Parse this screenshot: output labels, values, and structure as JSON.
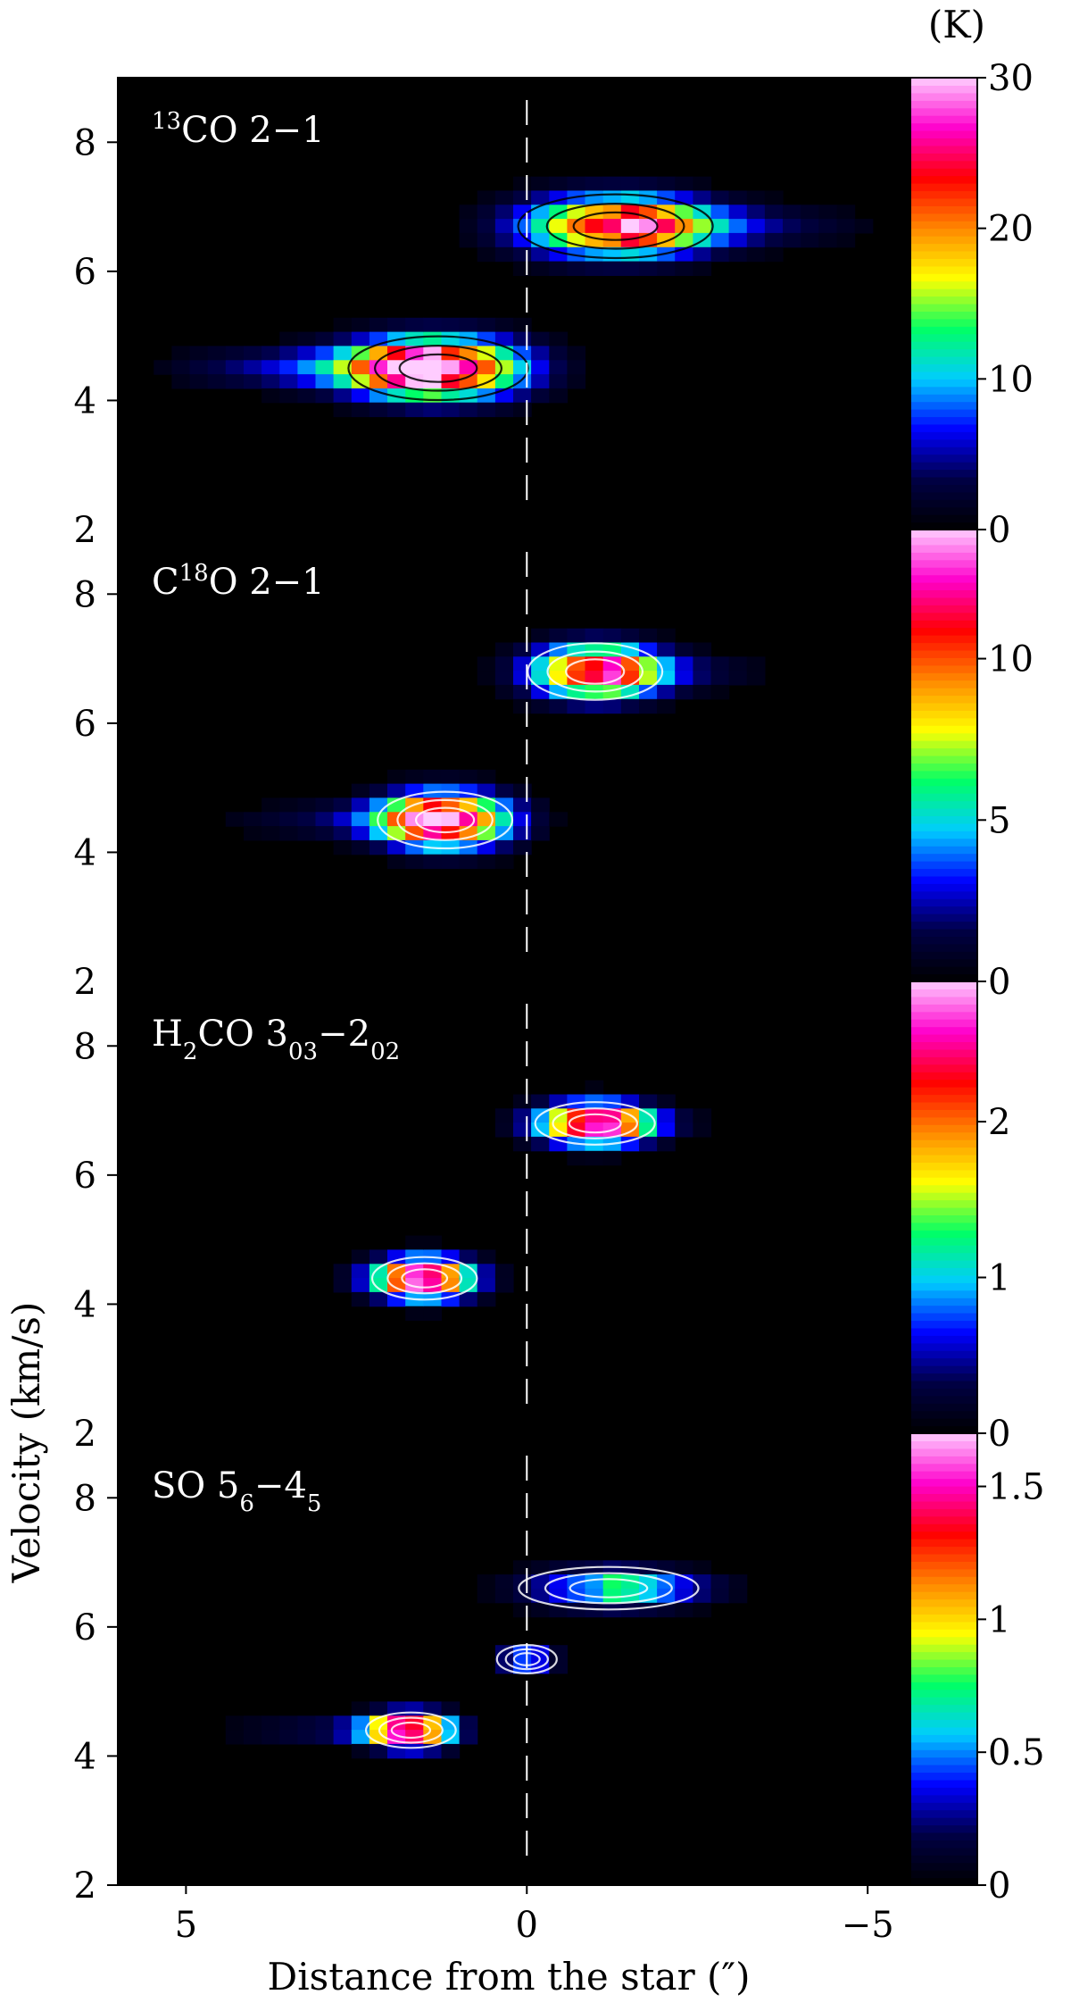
{
  "chart_data": {
    "type": "heatmap",
    "xlabel": "Distance from the star (″)",
    "ylabel": "Velocity (km/s)",
    "colorbar_unit": "(K)",
    "xlim": [
      6,
      -5.6
    ],
    "x_ticks": [
      "5",
      "0",
      "−5"
    ],
    "x_tick_values": [
      5,
      0,
      -5
    ],
    "star_marker_x": 0,
    "colormap": [
      "#000000",
      "#000044",
      "#0000ff",
      "#00ccff",
      "#00ff66",
      "#ffff00",
      "#ff8800",
      "#ff0000",
      "#ff00cc",
      "#ffccff"
    ],
    "panels": [
      {
        "id": "13co",
        "label": {
          "pre": "",
          "sup": "13",
          "mid": "CO 2−1",
          "sub1": "",
          "mid2": "",
          "sub2": ""
        },
        "ylim": [
          2,
          9
        ],
        "y_ticks": [
          "4",
          "6",
          "8"
        ],
        "y_tick_values": [
          4,
          6,
          8
        ],
        "y_tick_extra": "2",
        "colorbar_ticks": [
          "0",
          "10",
          "20",
          "30"
        ],
        "colorbar_tick_values": [
          0,
          10,
          20,
          30
        ],
        "colorbar_max": 30,
        "contour_color": "#000000",
        "blobs": [
          {
            "x": 1.3,
            "v": 4.5,
            "peak": 30,
            "sx": 1.2,
            "sv": 0.45,
            "tail_x": 5.8,
            "tail_amp": 12
          },
          {
            "x": -1.3,
            "v": 6.7,
            "peak": 25,
            "sx": 1.3,
            "sv": 0.45,
            "tail_x": -5.6,
            "tail_amp": 8
          }
        ]
      },
      {
        "id": "c18o",
        "label": {
          "pre": "C",
          "sup": "18",
          "mid": "O 2−1",
          "sub1": "",
          "mid2": "",
          "sub2": ""
        },
        "ylim": [
          2,
          9
        ],
        "y_ticks": [
          "4",
          "6",
          "8"
        ],
        "y_tick_values": [
          4,
          6,
          8
        ],
        "y_tick_extra": "2",
        "colorbar_ticks": [
          "0",
          "5",
          "10"
        ],
        "colorbar_tick_values": [
          0,
          5,
          10
        ],
        "colorbar_max": 14,
        "contour_color": "#000000",
        "blobs": [
          {
            "x": 1.2,
            "v": 4.5,
            "peak": 14,
            "sx": 0.9,
            "sv": 0.4,
            "tail_x": 5.0,
            "tail_amp": 3
          },
          {
            "x": -1.0,
            "v": 6.8,
            "peak": 12,
            "sx": 0.9,
            "sv": 0.4,
            "tail_x": -4.0,
            "tail_amp": 3
          }
        ]
      },
      {
        "id": "h2co",
        "label": {
          "pre": "H",
          "sup": "",
          "mid": "",
          "sub1": "2",
          "mid2": "CO 3",
          "sub2": "03",
          "post": "−2",
          "sub3": "02"
        },
        "ylim": [
          2,
          9
        ],
        "y_ticks": [
          "4",
          "6",
          "8"
        ],
        "y_tick_values": [
          4,
          6,
          8
        ],
        "y_tick_extra": "2",
        "colorbar_ticks": [
          "0",
          "1",
          "2"
        ],
        "colorbar_tick_values": [
          0,
          1,
          2
        ],
        "colorbar_max": 2.9,
        "contour_color": "#000000",
        "blobs": [
          {
            "x": 1.5,
            "v": 4.4,
            "peak": 2.9,
            "sx": 0.7,
            "sv": 0.3,
            "tail_x": 3.0,
            "tail_amp": 0.4
          },
          {
            "x": -1.0,
            "v": 6.8,
            "peak": 2.9,
            "sx": 0.8,
            "sv": 0.3,
            "tail_x": -3.0,
            "tail_amp": 0.4
          }
        ]
      },
      {
        "id": "so",
        "label": {
          "pre": "SO 5",
          "sup": "",
          "mid": "",
          "sub1": "6",
          "mid2": "−4",
          "sub2": "5",
          "post": "",
          "sub3": ""
        },
        "ylim": [
          2,
          9
        ],
        "y_ticks": [
          "2",
          "4",
          "6",
          "8"
        ],
        "y_tick_values": [
          2,
          4,
          6,
          8
        ],
        "y_tick_extra": "",
        "colorbar_ticks": [
          "0",
          "0.5",
          "1",
          "1.5"
        ],
        "colorbar_tick_values": [
          0,
          0.5,
          1,
          1.5
        ],
        "colorbar_max": 1.7,
        "contour_color": "#000000",
        "blobs": [
          {
            "x": 1.7,
            "v": 4.4,
            "peak": 1.7,
            "sx": 0.6,
            "sv": 0.25,
            "tail_x": 5.0,
            "tail_amp": 0.4
          },
          {
            "x": -1.2,
            "v": 6.6,
            "peak": 0.6,
            "sx": 1.2,
            "sv": 0.3,
            "tail_x": -3.5,
            "tail_amp": 0.3
          },
          {
            "x": 0.0,
            "v": 5.5,
            "peak": 0.6,
            "sx": 0.4,
            "sv": 0.2,
            "tail_x": 0,
            "tail_amp": 0
          }
        ]
      }
    ]
  }
}
